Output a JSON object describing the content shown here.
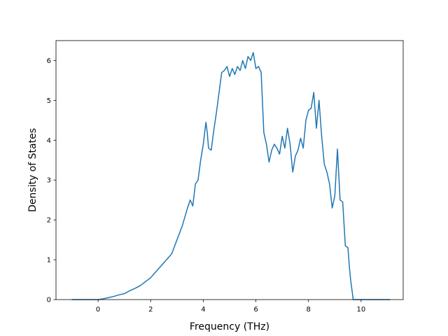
{
  "chart_data": {
    "type": "line",
    "title": "",
    "xlabel": "Frequency (THz)",
    "ylabel": "Density of States",
    "xlim": [
      -1.6,
      11.6
    ],
    "ylim": [
      0,
      6.5
    ],
    "xticks": [
      0,
      2,
      4,
      6,
      8,
      10
    ],
    "yticks": [
      0,
      1,
      2,
      3,
      4,
      5,
      6
    ],
    "grid": false,
    "legend": "none",
    "color": "#1f77b4",
    "series": [
      {
        "x": [
          -1.0,
          -0.5,
          0.0,
          0.2,
          0.4,
          0.6,
          0.8,
          1.0,
          1.2,
          1.4,
          1.6,
          1.8,
          1.9,
          2.0,
          2.2,
          2.4,
          2.6,
          2.8,
          3.0,
          3.2,
          3.4,
          3.5,
          3.6,
          3.7,
          3.8,
          3.9,
          4.0,
          4.1,
          4.15,
          4.2,
          4.3,
          4.4,
          4.5,
          4.6,
          4.7,
          4.8,
          4.9,
          5.0,
          5.1,
          5.2,
          5.3,
          5.4,
          5.5,
          5.6,
          5.7,
          5.8,
          5.9,
          6.0,
          6.1,
          6.2,
          6.3,
          6.4,
          6.5,
          6.6,
          6.7,
          6.8,
          6.9,
          7.0,
          7.1,
          7.2,
          7.3,
          7.4,
          7.5,
          7.6,
          7.7,
          7.8,
          7.9,
          8.0,
          8.1,
          8.2,
          8.3,
          8.4,
          8.5,
          8.6,
          8.7,
          8.8,
          8.9,
          9.0,
          9.1,
          9.2,
          9.3,
          9.4,
          9.5,
          9.55,
          9.6,
          9.7,
          9.8,
          9.9,
          10.0,
          10.1,
          10.2,
          10.5,
          11.1
        ],
        "y": [
          0.0,
          0.0,
          0.0,
          0.02,
          0.05,
          0.08,
          0.12,
          0.15,
          0.22,
          0.28,
          0.35,
          0.45,
          0.5,
          0.55,
          0.7,
          0.85,
          1.0,
          1.15,
          1.5,
          1.85,
          2.3,
          2.5,
          2.35,
          2.9,
          3.0,
          3.5,
          3.9,
          4.45,
          4.2,
          3.8,
          3.75,
          4.25,
          4.7,
          5.2,
          5.7,
          5.75,
          5.85,
          5.6,
          5.8,
          5.65,
          5.85,
          5.75,
          6.0,
          5.8,
          6.1,
          6.0,
          6.2,
          5.8,
          5.85,
          5.7,
          4.2,
          3.9,
          3.45,
          3.75,
          3.9,
          3.8,
          3.65,
          4.1,
          3.8,
          4.3,
          3.9,
          3.2,
          3.6,
          3.75,
          4.05,
          3.8,
          4.5,
          4.75,
          4.8,
          5.2,
          4.3,
          5.0,
          4.1,
          3.4,
          3.2,
          2.9,
          2.3,
          2.6,
          3.78,
          2.5,
          2.45,
          1.35,
          1.3,
          0.85,
          0.5,
          0.0,
          0.0,
          0.0,
          0.0,
          0.0,
          0.0,
          0.0,
          0.0
        ]
      }
    ]
  }
}
